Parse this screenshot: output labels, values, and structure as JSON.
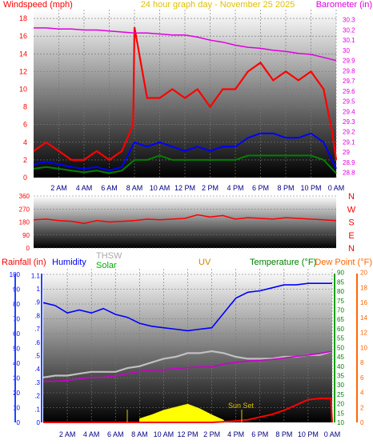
{
  "header": {
    "windspeed_label": "Windspeed (mph)",
    "title": "24 hour graph day - November 25 2025",
    "barometer_label": "Barometer (in)"
  },
  "middle": {
    "direction_labels": [
      "N",
      "W",
      "S",
      "E",
      "N"
    ]
  },
  "bottom_header": {
    "rainfall_label": "Rainfall (in)",
    "humidity_label": "Humidity",
    "thsw_label": "THSW",
    "solar_label": "Solar",
    "uv_label": "UV",
    "temperature_label": "Temperature (°F)",
    "dewpoint_label": "Dew Point (°F)"
  },
  "annotation": {
    "sunset_label": "Sun Set"
  },
  "colors": {
    "windspeed": "#ff0000",
    "gust": "#ff0000",
    "wind_avg": "#0000ff",
    "wind_low": "#008000",
    "barometer": "#e000e0",
    "title": "#e0c000",
    "direction": "#ff0000",
    "humidity": "#0000ff",
    "temperature": "#a0a0a0",
    "dewpoint": "#cc00cc",
    "rain": "#ff0000",
    "solar": "#ffff00",
    "uv": "#cc8800",
    "thsw": "#aaaaaa",
    "solar_label": "#00b000",
    "temp_label": "#008000",
    "dew_label": "#ff6600"
  },
  "chart_data": [
    {
      "type": "line",
      "name": "wind-barometer",
      "x_ticks": [
        "2 AM",
        "4 AM",
        "6 AM",
        "8 AM",
        "10 AM",
        "12 PM",
        "2 PM",
        "4 PM",
        "6 PM",
        "8 PM",
        "10 PM",
        "0 AM"
      ],
      "xlim": [
        0,
        24
      ],
      "y_left_ticks": [
        "0",
        "2",
        "4",
        "6",
        "8",
        "10",
        "12",
        "14",
        "16",
        "18"
      ],
      "ylim_left": [
        0,
        19
      ],
      "y_right_ticks": [
        "28.8",
        "28.9",
        "29",
        "29.1",
        "29.2",
        "29.3",
        "29.4",
        "29.5",
        "29.6",
        "29.7",
        "29.8",
        "29.9",
        "30",
        "30.1",
        "30.2",
        "30.3"
      ],
      "ylim_right": [
        28.75,
        30.4
      ],
      "barometer": {
        "x": [
          0,
          1,
          2,
          3,
          4,
          5,
          6,
          7,
          8,
          9,
          10,
          11,
          12,
          13,
          14,
          15,
          16,
          17,
          18,
          19,
          20,
          21,
          22,
          23,
          24
        ],
        "y": [
          30.22,
          30.22,
          30.21,
          30.21,
          30.2,
          30.2,
          30.19,
          30.18,
          30.17,
          30.17,
          30.16,
          30.15,
          30.15,
          30.13,
          30.1,
          30.08,
          30.05,
          30.03,
          30.02,
          30.0,
          29.99,
          29.97,
          29.96,
          29.93,
          29.9
        ]
      },
      "wind_gust": {
        "x": [
          0,
          1,
          2,
          3,
          4,
          5,
          6,
          7,
          7.9,
          8,
          9,
          10,
          11,
          12,
          13,
          14,
          15,
          16,
          17,
          18,
          19,
          20,
          21,
          22,
          23,
          23.7,
          24
        ],
        "y": [
          3,
          4,
          3,
          2,
          2,
          3,
          2,
          3,
          6,
          17,
          9,
          9,
          10,
          9,
          10,
          8,
          10,
          10,
          12,
          13,
          11,
          12,
          11,
          12,
          10,
          5,
          2
        ]
      },
      "wind_avg": {
        "x": [
          0,
          1,
          2,
          3,
          4,
          5,
          6,
          7,
          8,
          9,
          10,
          11,
          12,
          13,
          14,
          15,
          16,
          17,
          18,
          19,
          20,
          21,
          22,
          23,
          24
        ],
        "y": [
          1.5,
          1.8,
          1.5,
          1.2,
          1.0,
          1.2,
          0.8,
          1.2,
          4.0,
          3.5,
          4.0,
          3.5,
          3.0,
          3.5,
          3.0,
          3.5,
          3.5,
          4.5,
          5.0,
          5.0,
          4.5,
          4.5,
          5.0,
          4.0,
          1.0
        ]
      },
      "wind_low": {
        "x": [
          0,
          1,
          2,
          3,
          4,
          5,
          6,
          7,
          8,
          9,
          10,
          11,
          12,
          13,
          14,
          15,
          16,
          17,
          18,
          19,
          20,
          21,
          22,
          23,
          24
        ],
        "y": [
          1.0,
          1.2,
          1.0,
          0.8,
          0.6,
          0.8,
          0.5,
          0.8,
          2.0,
          2.0,
          2.5,
          2.0,
          2.0,
          2.0,
          2.0,
          2.0,
          2.0,
          2.5,
          2.5,
          2.5,
          2.5,
          2.5,
          2.5,
          2.0,
          0.5
        ]
      }
    },
    {
      "type": "line",
      "name": "wind-direction",
      "y_ticks": [
        "0",
        "90",
        "180",
        "270",
        "360"
      ],
      "ylim": [
        0,
        360
      ],
      "direction": {
        "x": [
          0,
          1,
          2,
          3,
          4,
          5,
          6,
          7,
          8,
          9,
          10,
          11,
          12,
          13,
          14,
          15,
          16,
          17,
          18,
          19,
          20,
          21,
          22,
          23,
          24
        ],
        "y": [
          195,
          200,
          190,
          185,
          170,
          190,
          180,
          185,
          190,
          200,
          195,
          200,
          205,
          230,
          215,
          225,
          200,
          210,
          205,
          200,
          210,
          205,
          200,
          195,
          190
        ]
      }
    },
    {
      "type": "line",
      "name": "weather",
      "ylim_rain": [
        0,
        1.15
      ],
      "rain_ticks": [
        "0",
        ".1",
        ".2",
        ".3",
        ".4",
        ".5",
        ".6",
        ".7",
        ".8",
        ".9",
        "1",
        "1.1"
      ],
      "ylim_humidity": [
        0,
        100
      ],
      "humidity_ticks": [
        "0",
        "10",
        "20",
        "30",
        "40",
        "50",
        "60",
        "70",
        "80",
        "90",
        "100"
      ],
      "ylim_temp": [
        10,
        92
      ],
      "temp_ticks": [
        "10",
        "15",
        "20",
        "25",
        "30",
        "35",
        "40",
        "45",
        "50",
        "55",
        "60",
        "65",
        "70",
        "75",
        "80",
        "85",
        "90"
      ],
      "ylim_dew": [
        0,
        20.5
      ],
      "dew_ticks": [
        "0",
        "2",
        "4",
        "6",
        "8",
        "10",
        "12",
        "14",
        "16",
        "18",
        "20"
      ],
      "humidity": {
        "x": [
          0,
          1,
          2,
          3,
          4,
          5,
          6,
          7,
          8,
          9,
          10,
          11,
          12,
          13,
          14,
          15,
          16,
          17,
          18,
          19,
          20,
          21,
          22,
          23,
          24
        ],
        "y": [
          81,
          79,
          74,
          76,
          74,
          77,
          73,
          71,
          67,
          65,
          64,
          63,
          62,
          63,
          64,
          74,
          84,
          88,
          89,
          91,
          93,
          93,
          94,
          94,
          94
        ]
      },
      "temperature": {
        "x": [
          0,
          1,
          2,
          3,
          4,
          5,
          6,
          7,
          8,
          9,
          10,
          11,
          12,
          13,
          14,
          15,
          16,
          17,
          18,
          19,
          20,
          21,
          22,
          23,
          24
        ],
        "y": [
          34,
          35,
          35,
          36,
          37,
          37,
          37,
          39,
          40,
          42,
          44,
          45,
          47,
          47,
          48,
          47,
          45,
          44,
          44,
          44,
          45,
          45,
          46,
          46,
          48
        ]
      },
      "dewpoint": {
        "x": [
          0,
          1,
          2,
          3,
          4,
          5,
          6,
          7,
          8,
          9,
          10,
          11,
          12,
          13,
          14,
          15,
          16,
          17,
          18,
          19,
          20,
          21,
          22,
          23,
          24
        ],
        "y": [
          5.5,
          5.5,
          5.6,
          5.8,
          6.0,
          6.0,
          6.2,
          6.5,
          6.8,
          7.0,
          7.0,
          7.2,
          7.3,
          7.4,
          7.4,
          7.8,
          8.0,
          8.2,
          8.3,
          8.4,
          8.6,
          8.8,
          9.0,
          9.2,
          9.5
        ]
      },
      "rain": {
        "x": [
          0,
          14,
          16,
          17,
          18,
          19,
          20,
          21,
          22,
          23,
          23.9,
          24
        ],
        "y": [
          0,
          0,
          0.01,
          0.02,
          0.04,
          0.06,
          0.09,
          0.13,
          0.17,
          0.18,
          0.18,
          0
        ]
      },
      "solar": {
        "x": [
          8,
          9,
          10,
          11,
          12,
          13,
          14,
          15
        ],
        "y": [
          0.5,
          1.0,
          1.6,
          2.0,
          2.4,
          1.8,
          1.0,
          0.3
        ]
      }
    }
  ]
}
